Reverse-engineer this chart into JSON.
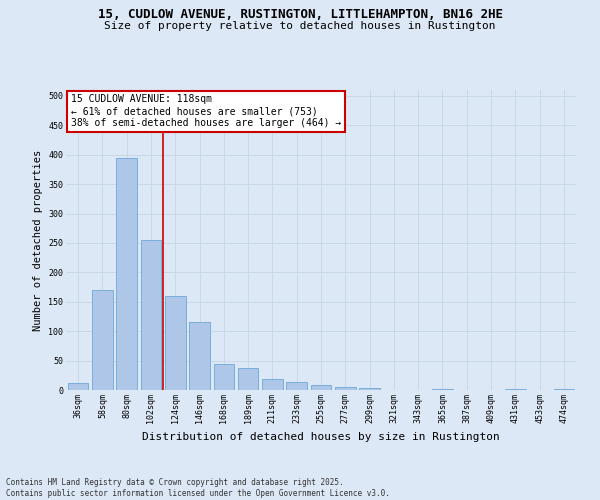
{
  "title": "15, CUDLOW AVENUE, RUSTINGTON, LITTLEHAMPTON, BN16 2HE",
  "subtitle": "Size of property relative to detached houses in Rustington",
  "xlabel": "Distribution of detached houses by size in Rustington",
  "ylabel": "Number of detached properties",
  "categories": [
    "36sqm",
    "58sqm",
    "80sqm",
    "102sqm",
    "124sqm",
    "146sqm",
    "168sqm",
    "189sqm",
    "211sqm",
    "233sqm",
    "255sqm",
    "277sqm",
    "299sqm",
    "321sqm",
    "343sqm",
    "365sqm",
    "387sqm",
    "409sqm",
    "431sqm",
    "453sqm",
    "474sqm"
  ],
  "values": [
    12,
    170,
    395,
    255,
    160,
    115,
    45,
    38,
    18,
    14,
    8,
    5,
    3,
    0,
    0,
    2,
    0,
    0,
    2,
    0,
    2
  ],
  "bar_color": "#aec6e8",
  "bar_edge_color": "#5a9fd4",
  "grid_color": "#c8d8e8",
  "background_color": "#dce8f5",
  "vline_x_idx": 3,
  "vline_color": "#cc0000",
  "annotation_text": "15 CUDLOW AVENUE: 118sqm\n← 61% of detached houses are smaller (753)\n38% of semi-detached houses are larger (464) →",
  "annotation_box_color": "#ffffff",
  "annotation_box_edge": "#cc0000",
  "ylim": [
    0,
    510
  ],
  "yticks": [
    0,
    50,
    100,
    150,
    200,
    250,
    300,
    350,
    400,
    450,
    500
  ],
  "footer": "Contains HM Land Registry data © Crown copyright and database right 2025.\nContains public sector information licensed under the Open Government Licence v3.0.",
  "title_fontsize": 9,
  "subtitle_fontsize": 8,
  "tick_fontsize": 6,
  "ylabel_fontsize": 7.5,
  "xlabel_fontsize": 8,
  "annotation_fontsize": 7,
  "footer_fontsize": 5.5
}
